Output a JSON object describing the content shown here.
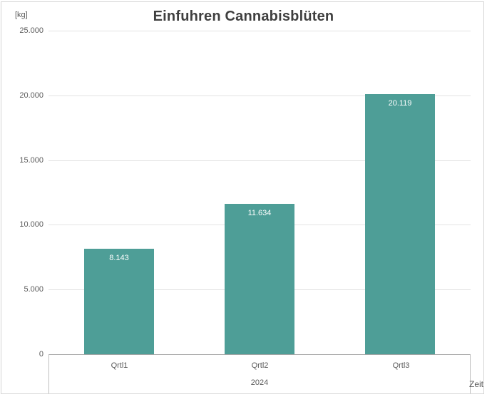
{
  "chart": {
    "title": "Einfuhren Cannabisblüten",
    "unit_label": "[kg]",
    "time_axis_label": "Zeit",
    "year_group_label": "2024"
  },
  "chart_data": {
    "type": "bar",
    "title": "Einfuhren Cannabisblüten",
    "categories": [
      "Qrtl1",
      "Qrtl2",
      "Qrtl3"
    ],
    "values": [
      8143,
      11634,
      20119
    ],
    "value_labels": [
      "8.143",
      "11.634",
      "20.119"
    ],
    "xlabel": "Zeit",
    "ylabel": "[kg]",
    "x_group_label": "2024",
    "ylim": [
      0,
      25000
    ],
    "ytick_step": 5000,
    "ytick_labels": [
      "0",
      "5.000",
      "10.000",
      "15.000",
      "20.000",
      "25.000"
    ],
    "grid": true,
    "legend": false,
    "bar_color": "#4E9E97"
  },
  "colors": {
    "bar": "#4E9E97",
    "title_text": "#3F3F3F",
    "axis_text": "#595959",
    "gridline": "#E3E3E3",
    "axis_line": "#A6A6A6",
    "frame_border": "#D4D4D4"
  }
}
